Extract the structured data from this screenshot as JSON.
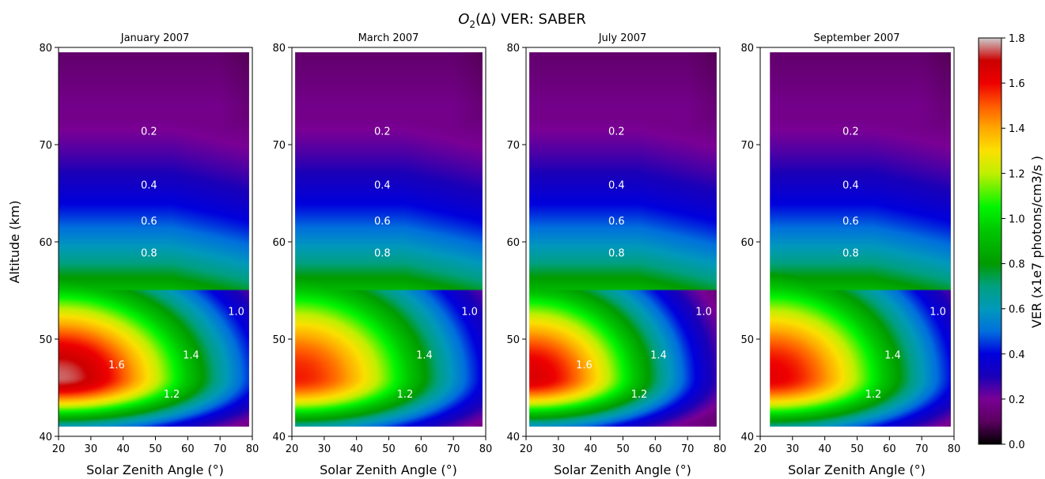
{
  "figure": {
    "title_main": "O",
    "title_sub": "2",
    "title_rest": "(Δ) VER: SABER"
  },
  "colorbar": {
    "label": "VER (x1e7 photons/cm3/s )",
    "ticks": [
      "0.0",
      "0.2",
      "0.4",
      "0.6",
      "0.8",
      "1.0",
      "1.2",
      "1.4",
      "1.6",
      "1.8"
    ],
    "range": [
      0.0,
      1.8
    ],
    "stops": [
      {
        "v": 0.0,
        "c": "#000000"
      },
      {
        "v": 0.1,
        "c": "#5a005f"
      },
      {
        "v": 0.2,
        "c": "#7a0095"
      },
      {
        "v": 0.3,
        "c": "#1a00b8"
      },
      {
        "v": 0.4,
        "c": "#0000dd"
      },
      {
        "v": 0.5,
        "c": "#0070dd"
      },
      {
        "v": 0.6,
        "c": "#0099bb"
      },
      {
        "v": 0.7,
        "c": "#00a080"
      },
      {
        "v": 0.8,
        "c": "#009b00"
      },
      {
        "v": 0.95,
        "c": "#00c800"
      },
      {
        "v": 1.05,
        "c": "#00f500"
      },
      {
        "v": 1.2,
        "c": "#c0ef00"
      },
      {
        "v": 1.3,
        "c": "#fbe000"
      },
      {
        "v": 1.4,
        "c": "#ffa800"
      },
      {
        "v": 1.5,
        "c": "#ff5a00"
      },
      {
        "v": 1.6,
        "c": "#ee0000"
      },
      {
        "v": 1.7,
        "c": "#cc0000"
      },
      {
        "v": 1.8,
        "c": "#cccccc"
      }
    ]
  },
  "chart_data": [
    {
      "type": "heatmap",
      "title": "January 2007",
      "xlabel": "Solar Zenith Angle (°)",
      "ylabel": "Altitude (km)",
      "xlim": [
        20,
        80
      ],
      "ylim": [
        40,
        80
      ],
      "xticks": [
        "20",
        "30",
        "40",
        "50",
        "60",
        "70",
        "80"
      ],
      "yticks": [
        "40",
        "50",
        "60",
        "70",
        "80"
      ],
      "data_extent": {
        "sza": [
          20,
          79
        ],
        "alt": [
          41,
          79.5
        ]
      },
      "peak": {
        "sza": 20,
        "alt": 46,
        "value": 1.75,
        "width_sza": 35,
        "width_alt": 5.5
      },
      "contours": [
        "0.2",
        "0.4",
        "0.6",
        "0.8",
        "1.0",
        "1.2",
        "1.4",
        "1.6"
      ]
    },
    {
      "type": "heatmap",
      "title": "March 2007",
      "xlabel": "Solar Zenith Angle (°)",
      "ylabel": "",
      "xlim": [
        20,
        80
      ],
      "ylim": [
        40,
        80
      ],
      "xticks": [
        "20",
        "30",
        "40",
        "50",
        "60",
        "70",
        "80"
      ],
      "yticks": [
        "40",
        "50",
        "60",
        "70",
        "80"
      ],
      "data_extent": {
        "sza": [
          21,
          79
        ],
        "alt": [
          41,
          79.5
        ]
      },
      "peak": {
        "sza": 21,
        "alt": 46,
        "value": 1.57,
        "width_sza": 34,
        "width_alt": 6
      },
      "contours": [
        "0.2",
        "0.4",
        "0.6",
        "0.8",
        "1.0",
        "1.2",
        "1.4"
      ]
    },
    {
      "type": "heatmap",
      "title": "July 2007",
      "xlabel": "Solar Zenith Angle (°)",
      "ylabel": "",
      "xlim": [
        20,
        80
      ],
      "ylim": [
        40,
        80
      ],
      "xticks": [
        "20",
        "30",
        "40",
        "50",
        "60",
        "70",
        "80"
      ],
      "yticks": [
        "40",
        "50",
        "60",
        "70",
        "80"
      ],
      "data_extent": {
        "sza": [
          21,
          79
        ],
        "alt": [
          41,
          79.5
        ]
      },
      "peak": {
        "sza": 21,
        "alt": 46,
        "value": 1.65,
        "width_sza": 30,
        "width_alt": 5.5
      },
      "contours": [
        "0.2",
        "0.4",
        "0.6",
        "0.8",
        "1.0",
        "1.2",
        "1.4",
        "1.6"
      ]
    },
    {
      "type": "heatmap",
      "title": "September 2007",
      "xlabel": "Solar Zenith Angle (°)",
      "ylabel": "",
      "xlim": [
        20,
        80
      ],
      "ylim": [
        40,
        80
      ],
      "xticks": [
        "20",
        "30",
        "40",
        "50",
        "60",
        "70",
        "80"
      ],
      "yticks": [
        "40",
        "50",
        "60",
        "70",
        "80"
      ],
      "data_extent": {
        "sza": [
          23,
          79
        ],
        "alt": [
          41,
          79.5
        ]
      },
      "peak": {
        "sza": 23,
        "alt": 46,
        "value": 1.62,
        "width_sza": 33,
        "width_alt": 6
      },
      "contours": [
        "0.2",
        "0.4",
        "0.6",
        "0.8",
        "1.0",
        "1.2",
        "1.4"
      ]
    }
  ]
}
